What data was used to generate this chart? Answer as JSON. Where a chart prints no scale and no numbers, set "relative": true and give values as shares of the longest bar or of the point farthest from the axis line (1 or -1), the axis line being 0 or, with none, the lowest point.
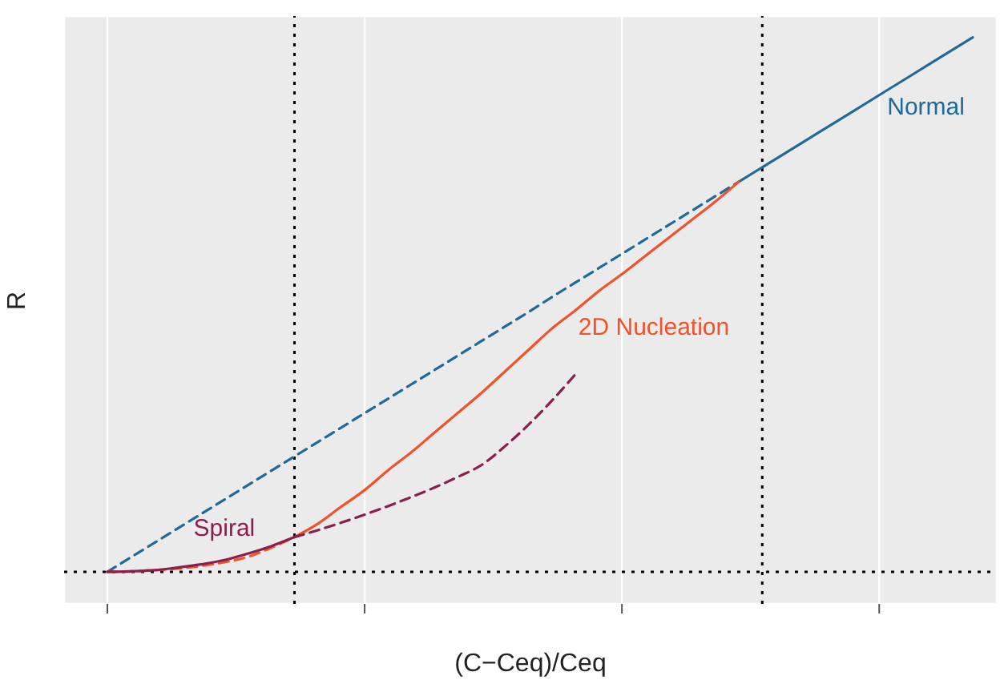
{
  "chart_data": {
    "type": "line",
    "relative": true,
    "xlabel": "(C−Ceq)/Ceq",
    "ylabel": "R",
    "grid": true,
    "legend": false,
    "marker": "none",
    "categories": [
      null,
      null,
      null,
      null,
      null,
      null,
      null,
      null,
      null,
      null,
      null,
      null,
      null,
      null,
      null,
      null,
      null,
      null,
      null,
      null,
      null,
      null,
      null,
      null,
      null,
      null,
      null,
      null,
      null,
      null,
      null,
      null,
      null,
      null,
      null,
      null,
      null,
      null
    ],
    "series": [
      {
        "name": "Normal",
        "color": "#1f6a9a",
        "line_style": "solid",
        "values": [
          null,
          null,
          null,
          null,
          null,
          null,
          null,
          null,
          null,
          null,
          null,
          null,
          null,
          null,
          null,
          null,
          null,
          null,
          null,
          null,
          null,
          null,
          null,
          null,
          null,
          null,
          null,
          0.73,
          0.757,
          0.784,
          0.811,
          0.838,
          0.865,
          0.892,
          0.919,
          0.946,
          0.973,
          1
        ]
      },
      {
        "color": "#1f6a9a",
        "line_style": "dashed",
        "values": [
          0,
          0.027,
          0.054,
          0.081,
          0.108,
          0.135,
          0.162,
          0.189,
          0.216,
          0.243,
          0.27,
          0.297,
          0.324,
          0.351,
          0.378,
          0.405,
          0.432,
          0.459,
          0.486,
          0.514,
          0.541,
          0.568,
          0.595,
          0.622,
          0.649,
          0.676,
          0.703,
          0.73,
          null,
          null,
          null,
          null,
          null,
          null,
          null,
          null,
          null,
          null
        ]
      },
      {
        "name": "2D Nucleation",
        "color": "#f0522a",
        "line_style": "solid",
        "values": [
          null,
          null,
          null,
          null,
          null,
          null,
          null,
          null,
          0.065,
          0.09,
          0.122,
          0.153,
          0.19,
          0.224,
          0.261,
          0.298,
          0.335,
          0.375,
          0.415,
          0.455,
          0.489,
          0.525,
          0.557,
          0.591,
          0.625,
          0.659,
          0.693,
          0.73,
          null,
          null,
          null,
          null,
          null,
          null,
          null,
          null,
          null,
          null
        ]
      },
      {
        "color": "#f0522a",
        "line_style": "dashed",
        "values": [
          0,
          0.001,
          0.003,
          0.006,
          0.011,
          0.018,
          0.028,
          0.045,
          0.065,
          null,
          null,
          null,
          null,
          null,
          null,
          null,
          null,
          null,
          null,
          null,
          null,
          null,
          null,
          null,
          null,
          null,
          null,
          null,
          null,
          null,
          null,
          null,
          null,
          null,
          null,
          null,
          null,
          null
        ]
      },
      {
        "name": "Spiral",
        "color": "#8b1e4f",
        "line_style": "solid",
        "values": [
          0,
          0.001,
          0.003,
          0.008,
          0.014,
          0.022,
          0.034,
          0.048,
          0.065,
          null,
          null,
          null,
          null,
          null,
          null,
          null,
          null,
          null,
          null,
          null,
          null,
          null,
          null,
          null,
          null,
          null,
          null,
          null,
          null,
          null,
          null,
          null,
          null,
          null,
          null,
          null,
          null,
          null
        ]
      },
      {
        "color": "#8b1e4f",
        "line_style": "dashed",
        "values": [
          null,
          null,
          null,
          null,
          null,
          null,
          null,
          null,
          0.065,
          0.078,
          0.092,
          0.107,
          0.123,
          0.14,
          0.158,
          0.178,
          0.2,
          0.235,
          0.275,
          0.32,
          0.369,
          null,
          null,
          null,
          null,
          null,
          null,
          null,
          null,
          null,
          null,
          null,
          null,
          null,
          null,
          null,
          null,
          null
        ]
      }
    ]
  }
}
